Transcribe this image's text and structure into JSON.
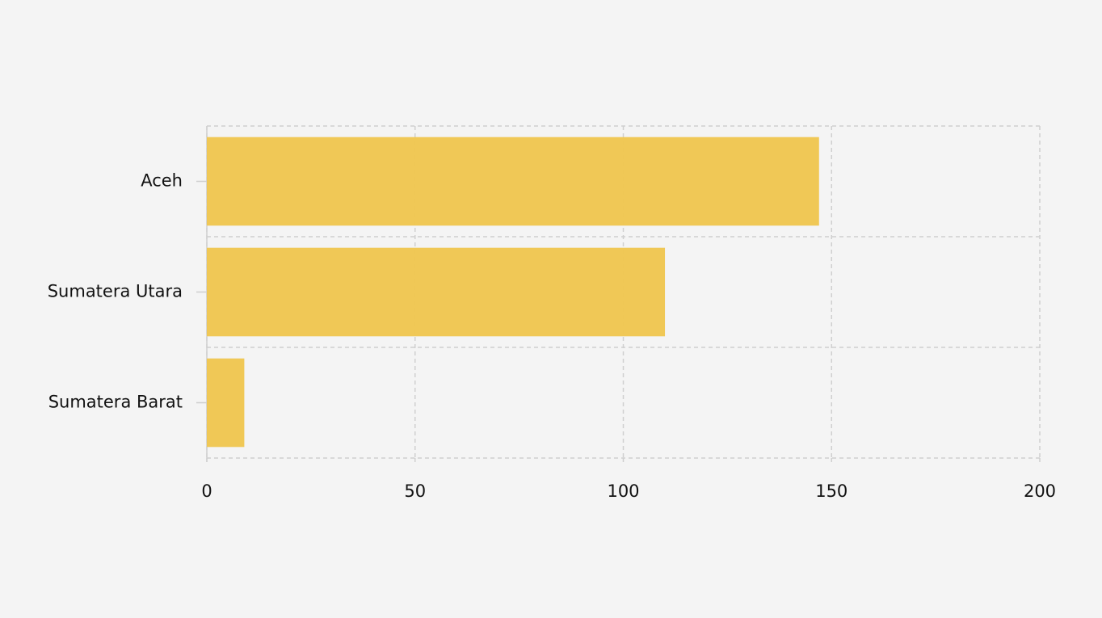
{
  "chart_data": {
    "type": "bar",
    "orientation": "horizontal",
    "categories": [
      "Aceh",
      "Sumatera Utara",
      "Sumatera Barat"
    ],
    "values": [
      147,
      110,
      9
    ],
    "color": "#f0c651",
    "xlim": [
      0,
      200
    ],
    "xticks": [
      0,
      50,
      100,
      150,
      200
    ],
    "grid": true
  }
}
